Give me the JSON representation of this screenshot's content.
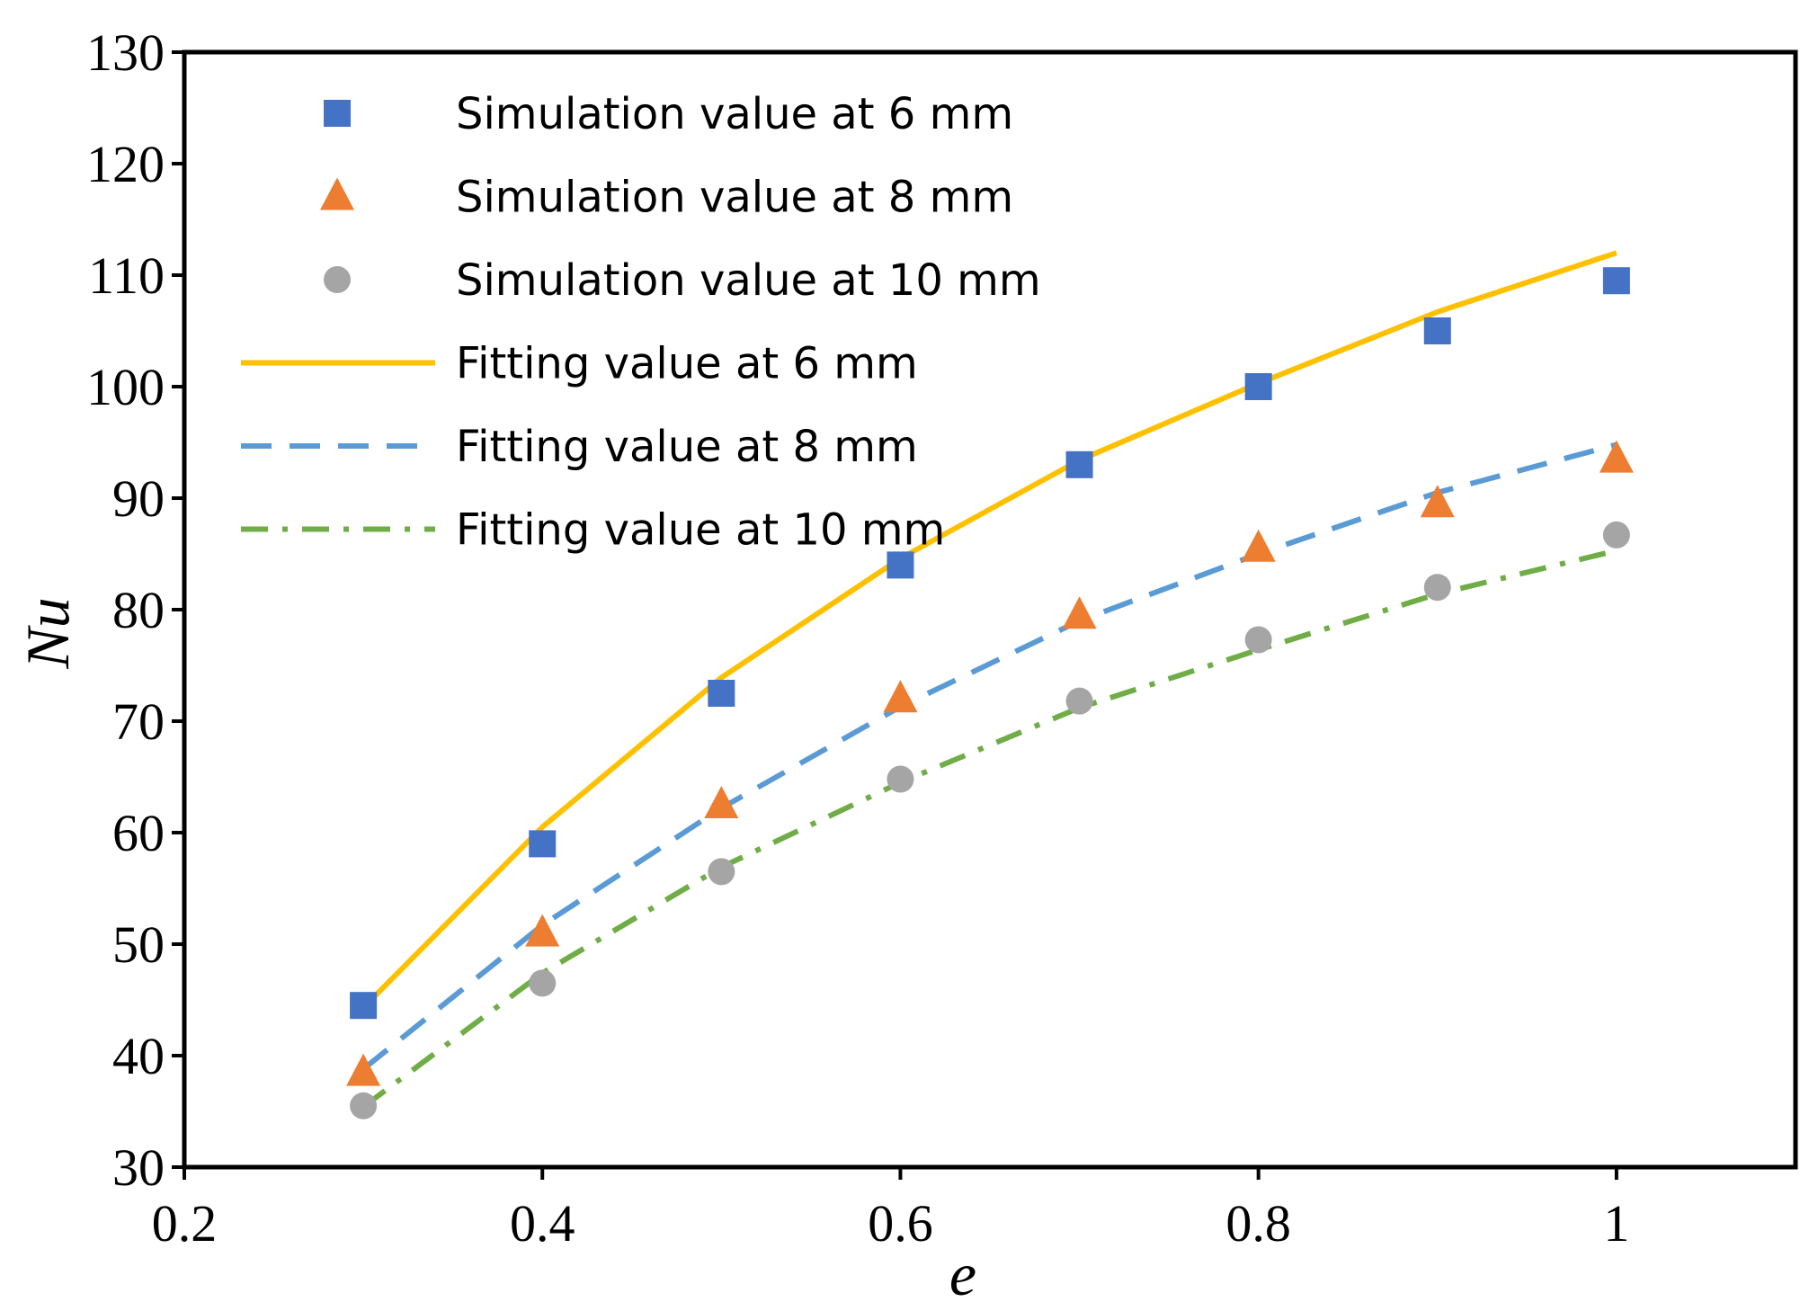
{
  "chart_data": {
    "type": "scatter",
    "title": "",
    "xlabel": "e",
    "ylabel": "Nu",
    "xlim": [
      0.2,
      1.1
    ],
    "ylim": [
      30,
      130
    ],
    "xticks": [
      0.2,
      0.4,
      0.6,
      0.8,
      1.0
    ],
    "xtick_labels": [
      "0.2",
      "0.4",
      "0.6",
      "0.8",
      "1"
    ],
    "yticks": [
      30,
      40,
      50,
      60,
      70,
      80,
      90,
      100,
      110,
      120,
      130
    ],
    "ytick_labels": [
      "30",
      "40",
      "50",
      "60",
      "70",
      "80",
      "90",
      "100",
      "110",
      "120",
      "130"
    ],
    "grid": false,
    "legend_position": "top-left",
    "x": [
      0.3,
      0.4,
      0.5,
      0.6,
      0.7,
      0.8,
      0.9,
      1.0
    ],
    "series": [
      {
        "name": "Simulation value at 6 mm",
        "kind": "marker",
        "marker": "square",
        "color": "#4472C4",
        "values": [
          44.5,
          59.0,
          72.5,
          84.0,
          93.0,
          100.0,
          105.0,
          109.5
        ]
      },
      {
        "name": "Simulation value at 8 mm",
        "kind": "marker",
        "marker": "triangle",
        "color": "#ED7D31",
        "values": [
          38.5,
          51.0,
          62.5,
          72.0,
          79.5,
          85.5,
          89.5,
          93.5
        ]
      },
      {
        "name": "Simulation value at 10 mm",
        "kind": "marker",
        "marker": "circle",
        "color": "#A5A5A5",
        "values": [
          35.5,
          46.5,
          56.5,
          64.8,
          71.8,
          77.3,
          82.0,
          86.7
        ]
      },
      {
        "name": "Fitting value at 6 mm",
        "kind": "line",
        "dash": "solid",
        "color": "#FFC000",
        "values": [
          44.3,
          60.5,
          73.9,
          84.6,
          93.4,
          100.3,
          106.7,
          112.0
        ]
      },
      {
        "name": "Fitting value at 8 mm",
        "kind": "line",
        "dash": "dashed",
        "color": "#5B9BD5",
        "values": [
          38.8,
          51.7,
          62.2,
          71.3,
          79.0,
          85.0,
          90.5,
          94.8
        ]
      },
      {
        "name": "Fitting value at 10 mm",
        "kind": "line",
        "dash": "dashdot",
        "color": "#70AD47",
        "values": [
          35.4,
          47.4,
          56.9,
          64.5,
          71.2,
          76.4,
          81.4,
          85.3
        ]
      }
    ]
  }
}
